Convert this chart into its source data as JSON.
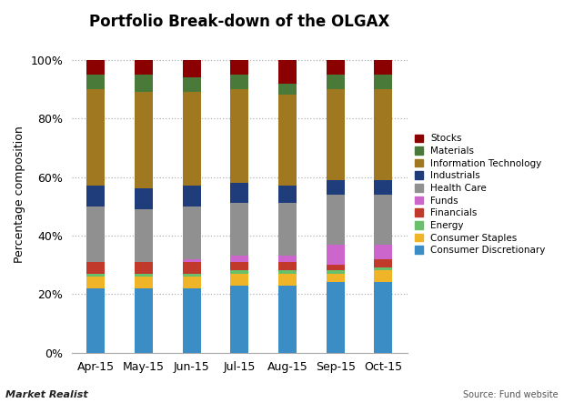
{
  "title": "Portfolio Break-down of the OLGAX",
  "ylabel": "Percentage composition",
  "months": [
    "Apr-15",
    "May-15",
    "Jun-15",
    "Jul-15",
    "Aug-15",
    "Sep-15",
    "Oct-15"
  ],
  "categories": [
    "Consumer Discretionary",
    "Consumer Staples",
    "Energy",
    "Financials",
    "Funds",
    "Health Care",
    "Industrials",
    "Information Technology",
    "Materials",
    "Stocks"
  ],
  "colors": [
    "#3a8dc5",
    "#f0b429",
    "#6abf6a",
    "#c0392b",
    "#cc66cc",
    "#909090",
    "#1f3d7a",
    "#a07820",
    "#4a7a3a",
    "#8b0000"
  ],
  "data": {
    "Consumer Discretionary": [
      22,
      22,
      22,
      23,
      23,
      24,
      24
    ],
    "Consumer Staples": [
      4,
      4,
      4,
      4,
      4,
      3,
      4
    ],
    "Energy": [
      1,
      1,
      1,
      1,
      1,
      1,
      1
    ],
    "Financials": [
      4,
      4,
      4,
      3,
      3,
      2,
      3
    ],
    "Funds": [
      0,
      0,
      1,
      2,
      2,
      7,
      5
    ],
    "Health Care": [
      19,
      18,
      18,
      18,
      18,
      17,
      17
    ],
    "Industrials": [
      7,
      7,
      7,
      7,
      6,
      5,
      5
    ],
    "Information Technology": [
      33,
      33,
      32,
      32,
      31,
      31,
      31
    ],
    "Materials": [
      5,
      6,
      5,
      5,
      4,
      5,
      5
    ],
    "Stocks": [
      5,
      5,
      6,
      5,
      8,
      5,
      5
    ]
  },
  "background_color": "#FFFFFF",
  "watermark": "Market Realist",
  "source": "Source: Fund website"
}
